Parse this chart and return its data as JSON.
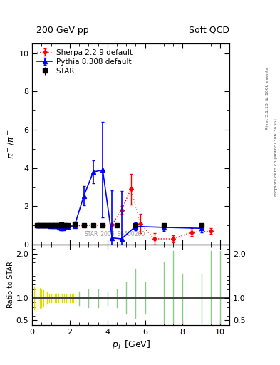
{
  "title_left": "200 GeV pp",
  "title_right": "Soft QCD",
  "ylabel_main": "$\\pi^- / \\pi^+$",
  "ylabel_ratio": "Ratio to STAR",
  "xlabel": "$p_T$ [GeV]",
  "right_label_top": "Rivet 3.1.10, ≥ 100k events",
  "right_label_bot": "mcplots.cern.ch [arXiv:1306.3436]",
  "watermark": "STAR_2006_S6500200",
  "ylim_main": [
    0,
    10.5
  ],
  "ylim_ratio": [
    0.4,
    2.2
  ],
  "xlim": [
    0,
    10.5
  ],
  "star_x": [
    0.25,
    0.35,
    0.45,
    0.55,
    0.65,
    0.75,
    0.85,
    0.95,
    1.05,
    1.15,
    1.25,
    1.35,
    1.45,
    1.55,
    1.65,
    1.75,
    1.9,
    2.25,
    2.75,
    3.25,
    3.75,
    4.5,
    5.5,
    7.0,
    9.0
  ],
  "star_y": [
    1.0,
    1.0,
    1.0,
    1.0,
    1.0,
    1.0,
    1.0,
    1.0,
    1.0,
    1.0,
    1.0,
    1.0,
    1.0,
    1.05,
    1.0,
    1.0,
    1.0,
    1.1,
    1.0,
    1.0,
    1.0,
    1.0,
    1.0,
    1.0,
    1.0
  ],
  "star_yerr": [
    0.04,
    0.04,
    0.04,
    0.04,
    0.04,
    0.04,
    0.04,
    0.04,
    0.04,
    0.04,
    0.04,
    0.04,
    0.04,
    0.04,
    0.04,
    0.04,
    0.05,
    0.07,
    0.04,
    0.04,
    0.04,
    0.04,
    0.04,
    0.04,
    0.04
  ],
  "pythia_x": [
    0.25,
    0.35,
    0.45,
    0.55,
    0.65,
    0.75,
    0.85,
    0.95,
    1.05,
    1.15,
    1.25,
    1.35,
    1.45,
    1.55,
    1.65,
    1.75,
    1.9,
    2.25,
    2.75,
    3.25,
    3.75,
    4.25,
    4.75,
    5.5,
    7.0,
    9.0
  ],
  "pythia_y": [
    1.0,
    1.0,
    1.0,
    1.0,
    1.0,
    1.0,
    0.99,
    0.98,
    0.97,
    0.97,
    0.97,
    0.96,
    0.9,
    0.85,
    0.87,
    0.92,
    0.95,
    0.98,
    2.55,
    3.8,
    3.9,
    0.35,
    0.3,
    0.95,
    0.9,
    0.85
  ],
  "pythia_yerr": [
    0.02,
    0.02,
    0.02,
    0.02,
    0.02,
    0.02,
    0.02,
    0.02,
    0.02,
    0.02,
    0.02,
    0.02,
    0.05,
    0.1,
    0.1,
    0.1,
    0.08,
    0.05,
    0.5,
    0.6,
    2.5,
    2.5,
    2.5,
    0.2,
    0.2,
    0.2
  ],
  "sherpa_x": [
    0.25,
    0.35,
    0.45,
    0.55,
    0.65,
    0.75,
    0.85,
    0.95,
    1.05,
    1.15,
    1.25,
    1.35,
    1.45,
    1.55,
    1.65,
    1.75,
    1.9,
    2.25,
    2.75,
    3.25,
    3.75,
    4.25,
    4.75,
    5.25,
    5.75,
    6.5,
    7.5,
    8.5,
    9.5
  ],
  "sherpa_y": [
    1.0,
    1.0,
    1.0,
    1.0,
    1.0,
    1.0,
    1.0,
    1.0,
    0.98,
    0.97,
    0.97,
    0.97,
    0.97,
    0.97,
    0.97,
    0.97,
    0.97,
    0.97,
    1.0,
    1.0,
    1.0,
    1.05,
    1.8,
    2.9,
    1.1,
    0.3,
    0.3,
    0.65,
    0.7
  ],
  "sherpa_yerr": [
    0.02,
    0.02,
    0.02,
    0.02,
    0.02,
    0.02,
    0.02,
    0.02,
    0.02,
    0.02,
    0.02,
    0.02,
    0.02,
    0.02,
    0.02,
    0.02,
    0.02,
    0.02,
    0.05,
    0.05,
    0.05,
    0.05,
    0.2,
    0.8,
    0.5,
    0.3,
    0.2,
    0.2,
    0.15
  ],
  "yellow_x": [
    0.1,
    0.2,
    0.3,
    0.4,
    0.5,
    0.6,
    0.7,
    0.8,
    0.9,
    1.0,
    1.1,
    1.2,
    1.3,
    1.4,
    1.5,
    1.6,
    1.7,
    1.8,
    1.9,
    2.0,
    2.1,
    2.2,
    2.3
  ],
  "yellow_lo": [
    0.75,
    0.75,
    0.75,
    0.78,
    0.8,
    0.82,
    0.85,
    0.87,
    0.9,
    0.9,
    0.9,
    0.9,
    0.9,
    0.9,
    0.9,
    0.9,
    0.9,
    0.9,
    0.9,
    0.9,
    0.9,
    0.9,
    0.9
  ],
  "yellow_hi": [
    1.25,
    1.25,
    1.25,
    1.22,
    1.2,
    1.18,
    1.15,
    1.13,
    1.1,
    1.1,
    1.1,
    1.1,
    1.1,
    1.1,
    1.1,
    1.1,
    1.1,
    1.1,
    1.1,
    1.1,
    1.1,
    1.1,
    1.1
  ],
  "green_x": [
    2.5,
    3.0,
    3.5,
    4.0,
    4.5,
    5.0,
    5.5,
    6.0,
    7.0,
    7.5,
    8.0,
    9.0,
    9.5,
    10.0
  ],
  "green_lo": [
    0.85,
    0.8,
    0.8,
    0.85,
    0.8,
    0.65,
    0.55,
    0.65,
    0.45,
    0.42,
    0.45,
    0.45,
    0.42,
    0.42
  ],
  "green_hi": [
    1.15,
    1.2,
    1.2,
    1.15,
    1.2,
    1.35,
    1.65,
    1.35,
    1.8,
    2.05,
    1.55,
    1.55,
    2.05,
    2.05
  ],
  "star_color": "black",
  "pythia_color": "blue",
  "sherpa_color": "red",
  "background": "white"
}
